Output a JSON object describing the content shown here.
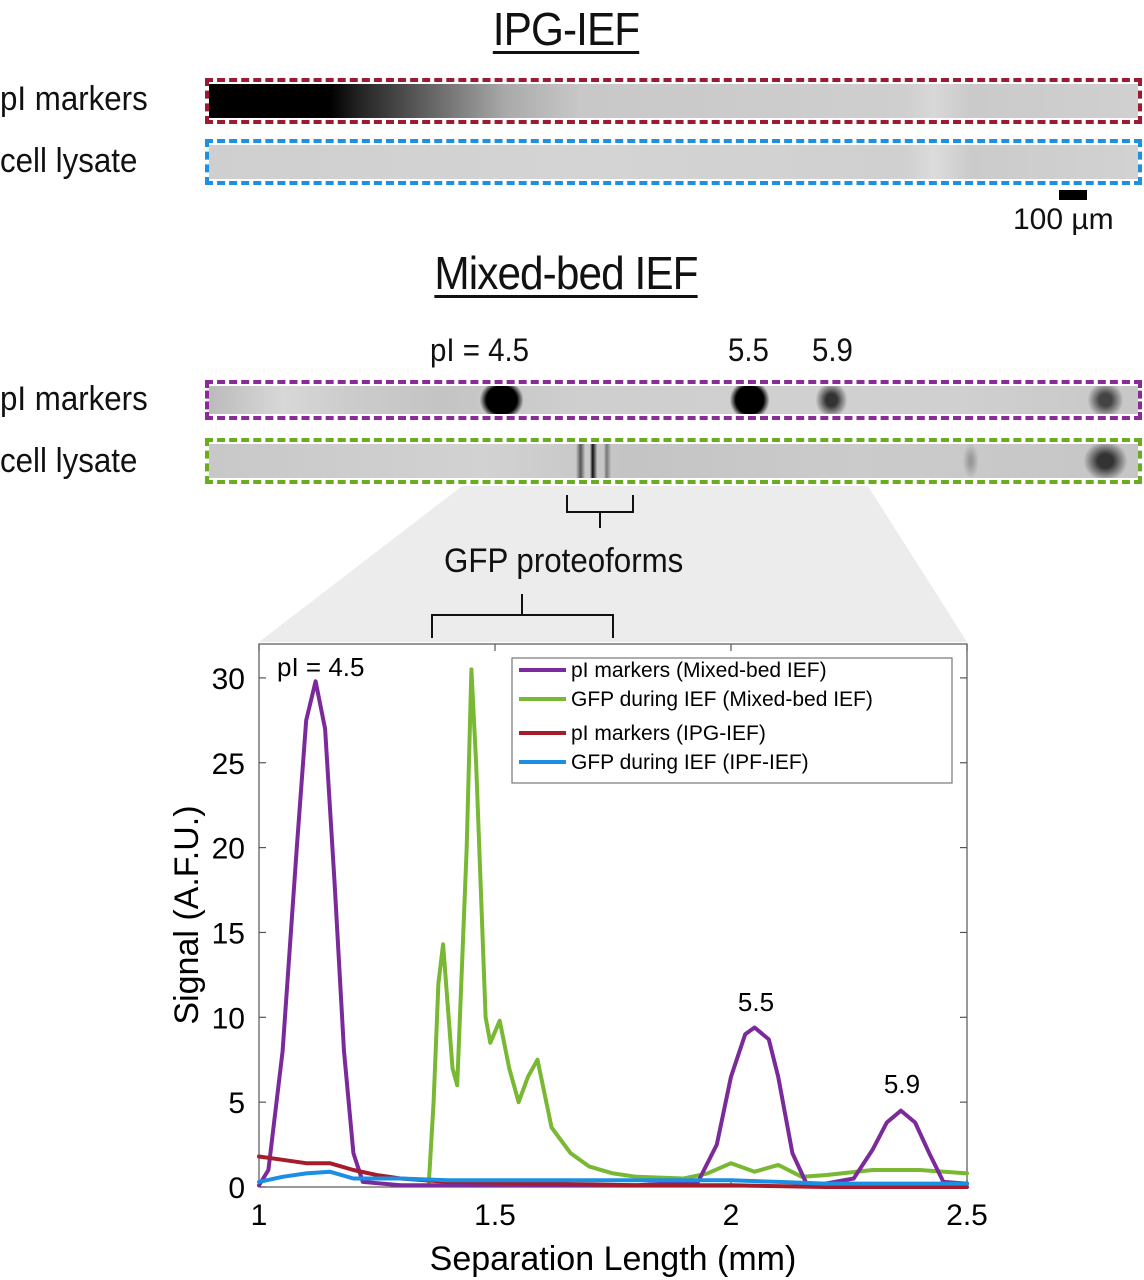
{
  "panels": {
    "ipg": {
      "title": "IPG-IEF",
      "rows": [
        {
          "label": "pI markers",
          "border_color": "#9b1b30"
        },
        {
          "label": "cell lysate",
          "border_color": "#1e90e0"
        }
      ],
      "scale_bar": "100 µm"
    },
    "mixed": {
      "title": "Mixed-bed IEF",
      "rows": [
        {
          "label": "pI markers",
          "border_color": "#8b2a99"
        },
        {
          "label": "cell lysate",
          "border_color": "#6aab1f"
        }
      ],
      "band_labels": [
        "pI = 4.5",
        "5.5",
        "5.9"
      ],
      "callout": "GFP proteoforms"
    }
  },
  "chart_data": {
    "type": "line",
    "title": "",
    "xlabel": "Separation Length (mm)",
    "ylabel": "Signal (A.F.U.)",
    "xlim": [
      1,
      2.5
    ],
    "ylim": [
      0,
      32
    ],
    "xticks": [
      "1",
      "1.5",
      "2",
      "2.5"
    ],
    "yticks": [
      "0",
      "5",
      "10",
      "15",
      "20",
      "25",
      "30"
    ],
    "grid": false,
    "legend_position": "upper right",
    "annotations": [
      {
        "text": "pI = 4.5",
        "x": 1.12,
        "y": 30
      },
      {
        "text": "5.5",
        "x": 2.05,
        "y": 9.5
      },
      {
        "text": "5.9",
        "x": 2.36,
        "y": 4.6
      }
    ],
    "series": [
      {
        "name": "pI markers (Mixed-bed IEF)",
        "color": "#7b2a9b",
        "x": [
          1.0,
          1.02,
          1.05,
          1.08,
          1.1,
          1.12,
          1.14,
          1.16,
          1.18,
          1.2,
          1.22,
          1.3,
          1.5,
          1.8,
          1.93,
          1.97,
          2.0,
          2.03,
          2.05,
          2.08,
          2.1,
          2.13,
          2.16,
          2.2,
          2.26,
          2.3,
          2.33,
          2.36,
          2.39,
          2.42,
          2.45,
          2.5
        ],
        "values": [
          0.1,
          1.0,
          8.0,
          20.0,
          27.5,
          29.8,
          27.0,
          18.0,
          8.0,
          2.0,
          0.3,
          0.1,
          0.1,
          0.1,
          0.3,
          2.5,
          6.5,
          9.0,
          9.4,
          8.7,
          6.5,
          2.0,
          0.2,
          0.2,
          0.5,
          2.2,
          3.8,
          4.5,
          3.8,
          2.0,
          0.3,
          0.2
        ]
      },
      {
        "name": "GFP during IEF (Mixed-bed IEF)",
        "color": "#78b833",
        "x": [
          1.36,
          1.37,
          1.38,
          1.39,
          1.41,
          1.42,
          1.44,
          1.45,
          1.46,
          1.48,
          1.49,
          1.51,
          1.53,
          1.55,
          1.57,
          1.59,
          1.62,
          1.66,
          1.7,
          1.75,
          1.8,
          1.9,
          1.95,
          2.0,
          2.05,
          2.1,
          2.15,
          2.2,
          2.3,
          2.4,
          2.5
        ],
        "values": [
          0.3,
          5.0,
          12.0,
          14.3,
          7.0,
          6.0,
          20.0,
          30.5,
          25.0,
          10.0,
          8.5,
          9.8,
          7.0,
          5.0,
          6.5,
          7.5,
          3.5,
          2.0,
          1.2,
          0.8,
          0.6,
          0.5,
          0.8,
          1.4,
          0.9,
          1.3,
          0.6,
          0.7,
          1.0,
          1.0,
          0.8
        ]
      },
      {
        "name": "pI markers (IPG-IEF)",
        "color": "#a51d2d",
        "x": [
          1.0,
          1.05,
          1.1,
          1.15,
          1.2,
          1.25,
          1.3,
          1.4,
          1.6,
          1.8,
          2.0,
          2.2,
          2.5
        ],
        "values": [
          1.8,
          1.6,
          1.4,
          1.4,
          1.0,
          0.7,
          0.5,
          0.3,
          0.2,
          0.1,
          0.1,
          0.0,
          0.0
        ]
      },
      {
        "name": "GFP during IEF (IPF-IEF)",
        "color": "#1a8fe3",
        "x": [
          1.0,
          1.05,
          1.1,
          1.15,
          1.2,
          1.3,
          1.4,
          1.5,
          1.6,
          1.7,
          1.8,
          1.9,
          2.0,
          2.1,
          2.2,
          2.3,
          2.4,
          2.5
        ],
        "values": [
          0.3,
          0.6,
          0.8,
          0.9,
          0.5,
          0.5,
          0.4,
          0.4,
          0.4,
          0.4,
          0.4,
          0.4,
          0.4,
          0.3,
          0.2,
          0.2,
          0.2,
          0.2
        ]
      }
    ]
  }
}
